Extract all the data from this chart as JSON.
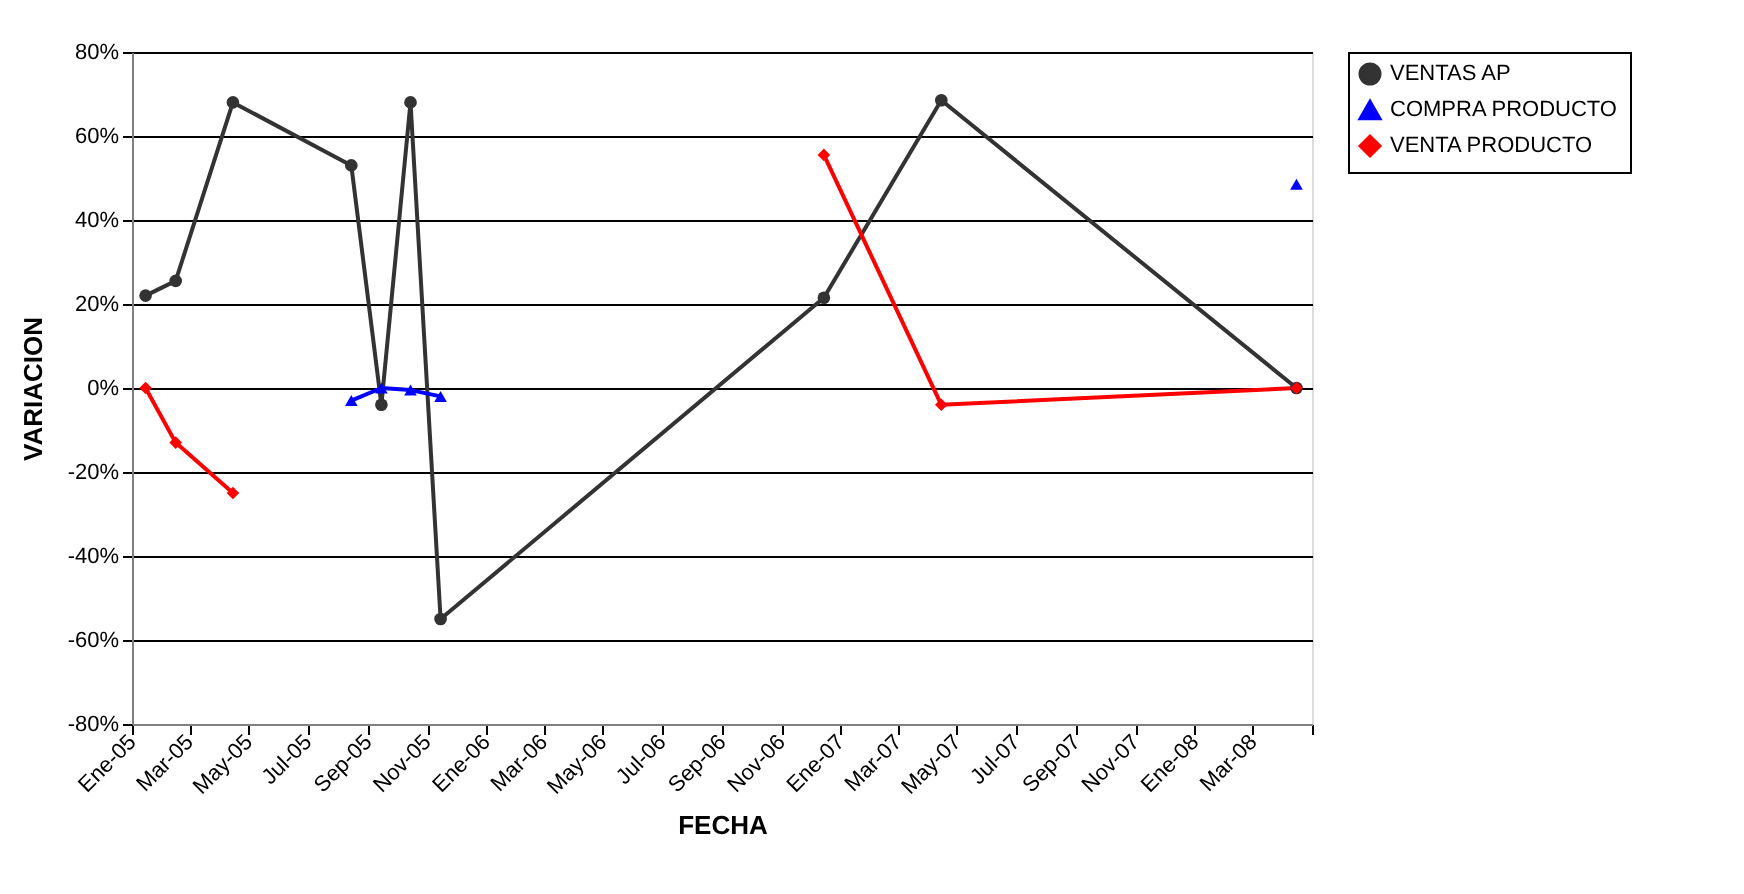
{
  "chart_data": {
    "type": "line",
    "xlabel": "FECHA",
    "ylabel": "VARIACION",
    "x": [
      "2005-01-15",
      "2005-02-15",
      "2005-04-15",
      "2005-08-15",
      "2005-09-15",
      "2005-10-15",
      "2005-11-15",
      "2006-12-15",
      "2007-04-15",
      "2008-04-15"
    ],
    "series": [
      {
        "name": "VENTAS AP",
        "color": "#333333",
        "marker": "circle",
        "values": [
          22,
          25.5,
          68,
          53,
          -4,
          68,
          -55,
          21.5,
          68.5,
          0
        ]
      },
      {
        "name": "COMPRA PRODUCTO",
        "color": "#0000ff",
        "marker": "triangle",
        "values": [
          null,
          null,
          null,
          -3,
          0,
          -0.5,
          -2,
          null,
          null,
          48.5
        ]
      },
      {
        "name": "VENTA PRODUCTO",
        "color": "#ff0000",
        "marker": "diamond",
        "values": [
          0,
          -13,
          -25,
          null,
          null,
          null,
          null,
          55.5,
          -4,
          0
        ]
      }
    ],
    "xlim": [
      "2005-01",
      "2008-05"
    ],
    "xticks": [
      {
        "value": "2005-01",
        "label": "Ene-05"
      },
      {
        "value": "2005-03",
        "label": "Mar-05"
      },
      {
        "value": "2005-05",
        "label": "May-05"
      },
      {
        "value": "2005-07",
        "label": "Jul-05"
      },
      {
        "value": "2005-09",
        "label": "Sep-05"
      },
      {
        "value": "2005-11",
        "label": "Nov-05"
      },
      {
        "value": "2006-01",
        "label": "Ene-06"
      },
      {
        "value": "2006-03",
        "label": "Mar-06"
      },
      {
        "value": "2006-05",
        "label": "May-06"
      },
      {
        "value": "2006-07",
        "label": "Jul-06"
      },
      {
        "value": "2006-09",
        "label": "Sep-06"
      },
      {
        "value": "2006-11",
        "label": "Nov-06"
      },
      {
        "value": "2007-01",
        "label": "Ene-07"
      },
      {
        "value": "2007-03",
        "label": "Mar-07"
      },
      {
        "value": "2007-05",
        "label": "May-07"
      },
      {
        "value": "2007-07",
        "label": "Jul-07"
      },
      {
        "value": "2007-09",
        "label": "Sep-07"
      },
      {
        "value": "2007-11",
        "label": "Nov-07"
      },
      {
        "value": "2008-01",
        "label": "Ene-08"
      },
      {
        "value": "2008-03",
        "label": "Mar-08"
      },
      {
        "value": "2008-05",
        "label": null
      }
    ],
    "ylim": [
      -80,
      80
    ],
    "yticks": [
      {
        "value": -80,
        "label": "-80%"
      },
      {
        "value": -60,
        "label": "-60%"
      },
      {
        "value": -40,
        "label": "-40%"
      },
      {
        "value": -20,
        "label": "-20%"
      },
      {
        "value": 0,
        "label": "0%"
      },
      {
        "value": 20,
        "label": "20%"
      },
      {
        "value": 40,
        "label": "40%"
      },
      {
        "value": 60,
        "label": "60%"
      },
      {
        "value": 80,
        "label": "80%"
      }
    ],
    "grid": "y",
    "legend": "right"
  }
}
